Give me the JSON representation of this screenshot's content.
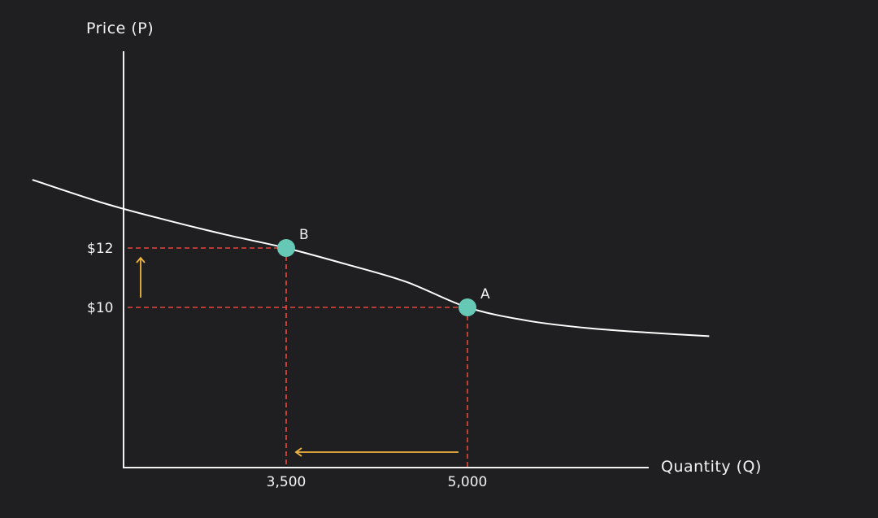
{
  "chart_data": {
    "type": "line",
    "xlabel": "Quantity (Q)",
    "ylabel": "Price (P)",
    "x_ticks": [
      {
        "value": 3500,
        "label": "3,500"
      },
      {
        "value": 5000,
        "label": "5,000"
      }
    ],
    "y_ticks": [
      {
        "value": 10,
        "label": "$10"
      },
      {
        "value": 12,
        "label": "$12"
      }
    ],
    "series": [
      {
        "x": [
          1400,
          2000,
          2500,
          3000,
          3500,
          4000,
          4500,
          5000,
          5500,
          6000,
          6500,
          7000
        ],
        "y": [
          14.3,
          13.5,
          12.95,
          12.45,
          12.0,
          11.45,
          10.85,
          10.0,
          9.55,
          9.3,
          9.15,
          9.03
        ]
      }
    ],
    "points": [
      {
        "label": "B",
        "x": 3500,
        "y": 12
      },
      {
        "label": "A",
        "x": 5000,
        "y": 10
      }
    ],
    "arrows": [
      {
        "direction": "up",
        "from_y": 10,
        "to_y": 12
      },
      {
        "direction": "left",
        "from_x": 5000,
        "to_x": 3500
      }
    ],
    "colors": {
      "background": "#1f1f21",
      "axis": "#f2f2f2",
      "curve": "#ffffff",
      "guide": "#e8473c",
      "point": "#66c9b5",
      "arrow": "#f2b441"
    }
  }
}
